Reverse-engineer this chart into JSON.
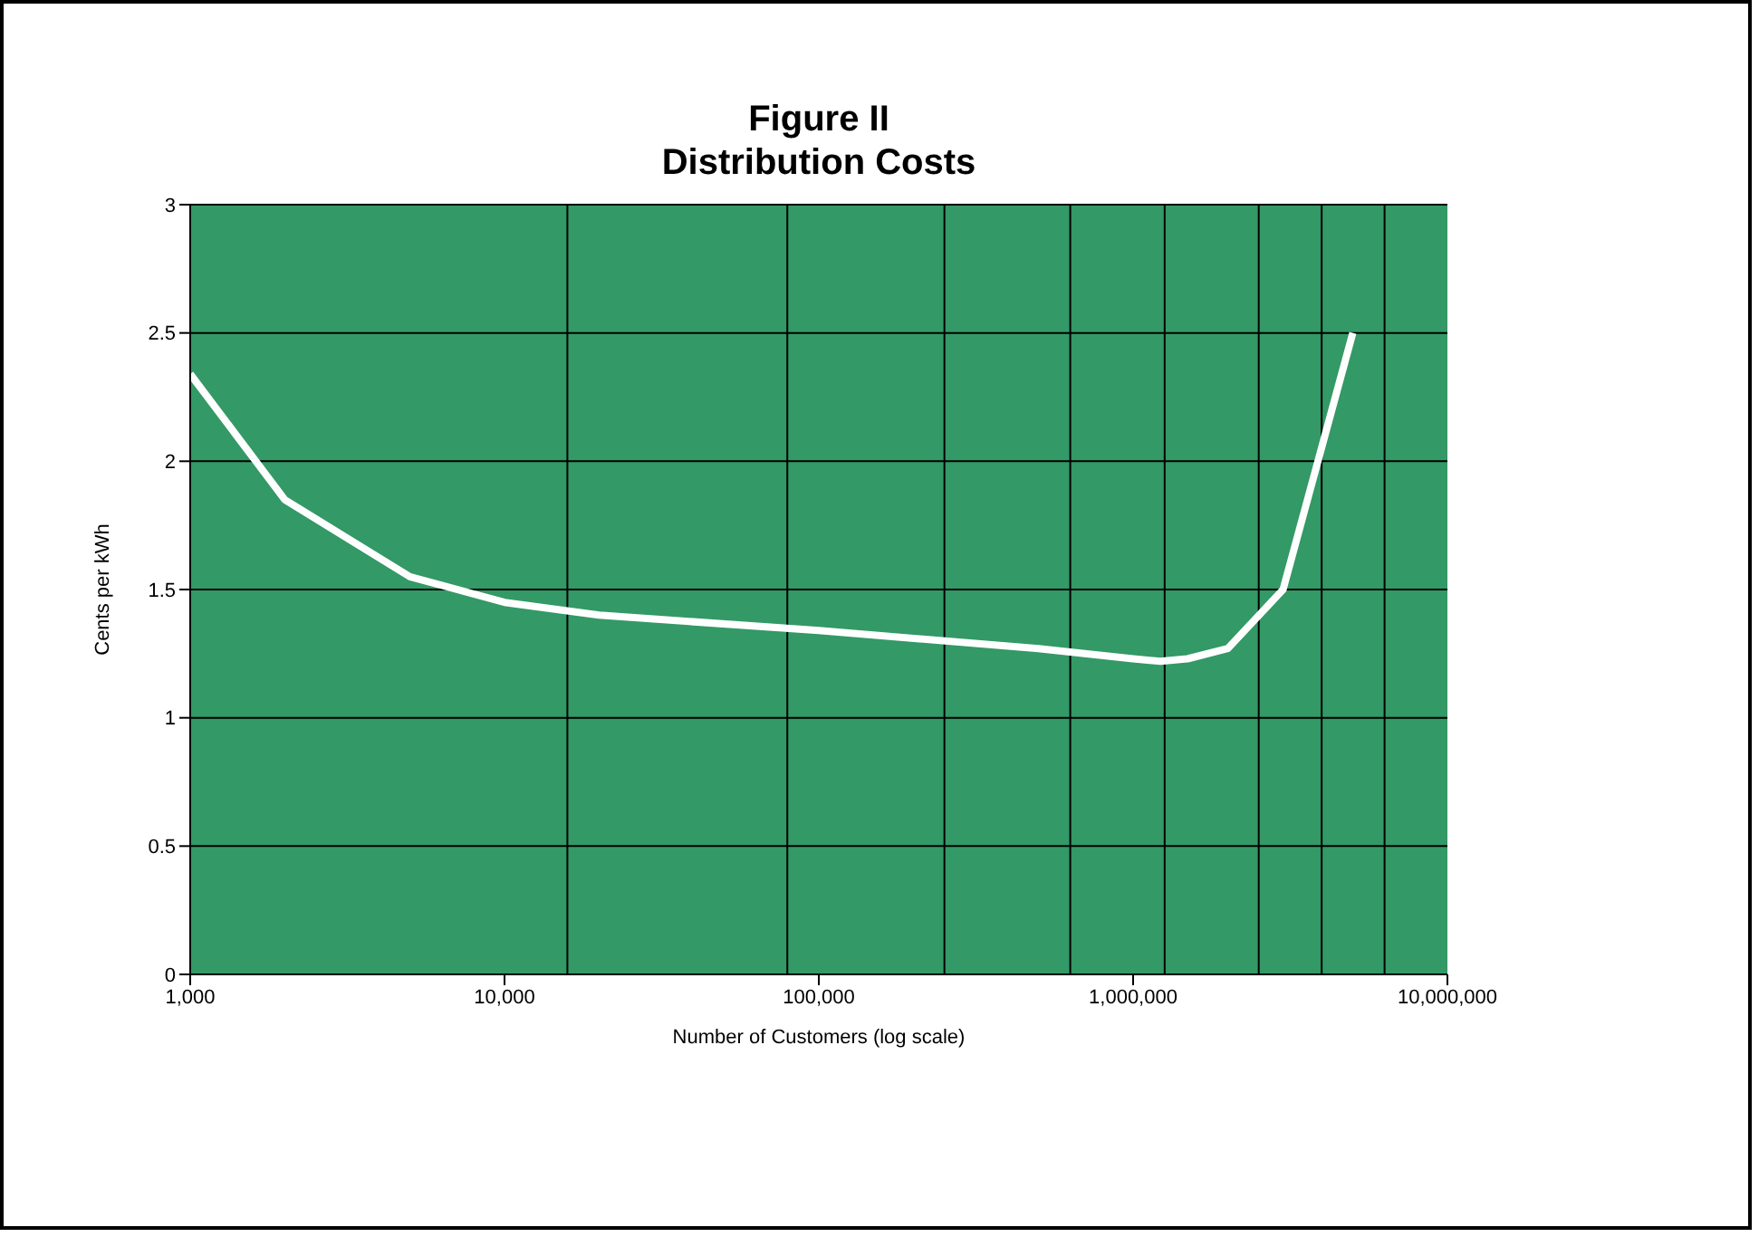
{
  "chart_data": {
    "type": "line",
    "title": "Figure II",
    "subtitle": "Distribution Costs",
    "xlabel": "Number of Customers (log scale)",
    "ylabel": "Cents per kWh",
    "x": [
      1000,
      2000,
      5000,
      10000,
      20000,
      100000,
      500000,
      1000000,
      1220000,
      1490000,
      2000000,
      3000000,
      5000000
    ],
    "series": [
      {
        "color": "#ffffff",
        "values": [
          2.34,
          1.85,
          1.55,
          1.45,
          1.4,
          1.34,
          1.27,
          1.23,
          1.22,
          1.23,
          1.27,
          1.5,
          2.5
        ]
      }
    ],
    "log": "x",
    "xlim": [
      1000,
      10000000
    ],
    "xticks": [
      {
        "value": 1000,
        "label": "1,000"
      },
      {
        "value": 10000,
        "label": "10,000"
      },
      {
        "value": 100000,
        "label": "100,000"
      },
      {
        "value": 1000000,
        "label": "1,000,000"
      },
      {
        "value": 10000000,
        "label": "10,000,000"
      }
    ],
    "ylim": [
      0,
      3
    ],
    "yticks": [
      0,
      0.5,
      1,
      1.5,
      2,
      2.5,
      3
    ],
    "grid": "y",
    "marker": "none",
    "line_style": "solid",
    "legend": false,
    "ref_lines": [
      {
        "axis": "x",
        "value": 15850,
        "color": "#000000"
      },
      {
        "axis": "x",
        "value": 79400,
        "color": "#000000"
      },
      {
        "axis": "x",
        "value": 251000,
        "color": "#000000"
      },
      {
        "axis": "x",
        "value": 631000,
        "color": "#000000"
      },
      {
        "axis": "x",
        "value": 1260000,
        "color": "#000000"
      },
      {
        "axis": "x",
        "value": 2510000,
        "color": "#000000"
      },
      {
        "axis": "x",
        "value": 3980000,
        "color": "#000000"
      },
      {
        "axis": "x",
        "value": 6310000,
        "color": "#000000"
      }
    ]
  }
}
